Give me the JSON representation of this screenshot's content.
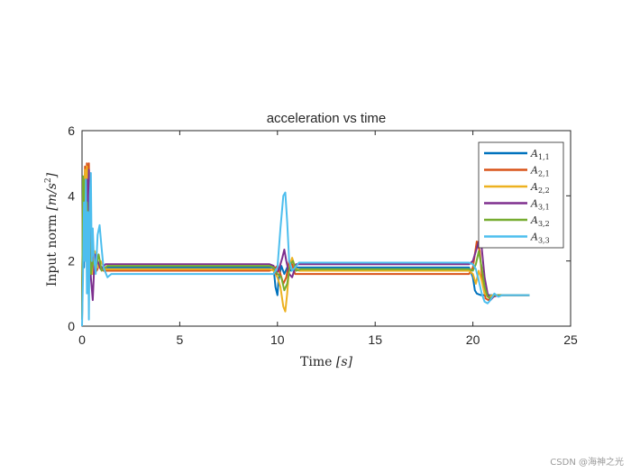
{
  "chart_data": {
    "type": "line",
    "title": "acceleration vs time",
    "xlabel": "Time [s]",
    "ylabel": "Input norm [m/s^2]",
    "xlim": [
      0,
      25
    ],
    "ylim": [
      0,
      6
    ],
    "xticks": [
      0,
      5,
      10,
      15,
      20,
      25
    ],
    "yticks": [
      0,
      2,
      4,
      6
    ],
    "legend_position": "top-right",
    "series": [
      {
        "name": "A1,1",
        "base": "A",
        "sub": "1,1",
        "color": "#0072BD",
        "points": [
          [
            0,
            0.2
          ],
          [
            0.05,
            3.5
          ],
          [
            0.1,
            1.8
          ],
          [
            0.15,
            3.8
          ],
          [
            0.2,
            2.5
          ],
          [
            0.25,
            4.2
          ],
          [
            0.3,
            1.7
          ],
          [
            0.35,
            3.0
          ],
          [
            0.4,
            2.2
          ],
          [
            0.45,
            1.7
          ],
          [
            0.55,
            2.1
          ],
          [
            0.65,
            1.8
          ],
          [
            0.8,
            1.9
          ],
          [
            1.0,
            1.75
          ],
          [
            1.3,
            1.8
          ],
          [
            2,
            1.8
          ],
          [
            9.6,
            1.8
          ],
          [
            9.8,
            1.8
          ],
          [
            9.9,
            1.2
          ],
          [
            10.0,
            0.95
          ],
          [
            10.05,
            1.4
          ],
          [
            10.2,
            1.85
          ],
          [
            10.35,
            1.6
          ],
          [
            10.5,
            1.8
          ],
          [
            10.7,
            1.7
          ],
          [
            11,
            1.8
          ],
          [
            19.8,
            1.8
          ],
          [
            20.0,
            1.5
          ],
          [
            20.1,
            1.1
          ],
          [
            20.2,
            1.0
          ],
          [
            20.4,
            0.95
          ],
          [
            20.8,
            0.95
          ],
          [
            21,
            0.95
          ],
          [
            22,
            0.95
          ],
          [
            22.9,
            0.95
          ]
        ]
      },
      {
        "name": "A2,1",
        "base": "A",
        "sub": "2,1",
        "color": "#D95319",
        "points": [
          [
            0,
            0.3
          ],
          [
            0.05,
            4.5
          ],
          [
            0.1,
            3.0
          ],
          [
            0.15,
            4.9
          ],
          [
            0.2,
            3.5
          ],
          [
            0.25,
            5.0
          ],
          [
            0.3,
            4.0
          ],
          [
            0.35,
            5.0
          ],
          [
            0.4,
            3.0
          ],
          [
            0.45,
            2.0
          ],
          [
            0.5,
            1.6
          ],
          [
            0.6,
            2.2
          ],
          [
            0.75,
            1.7
          ],
          [
            0.9,
            1.9
          ],
          [
            1.1,
            1.7
          ],
          [
            1.5,
            1.7
          ],
          [
            2,
            1.7
          ],
          [
            9.6,
            1.7
          ],
          [
            9.8,
            1.75
          ],
          [
            10.0,
            1.85
          ],
          [
            10.15,
            1.6
          ],
          [
            10.3,
            1.3
          ],
          [
            10.45,
            1.5
          ],
          [
            10.6,
            2.0
          ],
          [
            10.75,
            1.9
          ],
          [
            10.9,
            1.6
          ],
          [
            11.2,
            1.6
          ],
          [
            11.5,
            1.6
          ],
          [
            19.8,
            1.6
          ],
          [
            20.0,
            1.8
          ],
          [
            20.2,
            2.6
          ],
          [
            20.35,
            2.3
          ],
          [
            20.5,
            1.3
          ],
          [
            20.65,
            0.85
          ],
          [
            20.8,
            0.8
          ],
          [
            21.0,
            0.9
          ],
          [
            21.3,
            0.95
          ],
          [
            22,
            0.95
          ],
          [
            22.9,
            0.95
          ]
        ]
      },
      {
        "name": "A2,2",
        "base": "A",
        "sub": "2,2",
        "color": "#EDB120",
        "points": [
          [
            0,
            0.3
          ],
          [
            0.05,
            4.0
          ],
          [
            0.1,
            2.5
          ],
          [
            0.15,
            4.8
          ],
          [
            0.2,
            3.2
          ],
          [
            0.25,
            4.9
          ],
          [
            0.3,
            3.5
          ],
          [
            0.35,
            4.8
          ],
          [
            0.4,
            2.5
          ],
          [
            0.45,
            1.8
          ],
          [
            0.55,
            1.6
          ],
          [
            0.65,
            2.3
          ],
          [
            0.8,
            1.8
          ],
          [
            0.95,
            2.0
          ],
          [
            1.2,
            1.75
          ],
          [
            2,
            1.75
          ],
          [
            9.6,
            1.75
          ],
          [
            9.8,
            1.7
          ],
          [
            10.0,
            1.5
          ],
          [
            10.15,
            1.2
          ],
          [
            10.3,
            0.6
          ],
          [
            10.4,
            0.45
          ],
          [
            10.5,
            1.0
          ],
          [
            10.6,
            1.8
          ],
          [
            10.75,
            2.1
          ],
          [
            10.9,
            1.8
          ],
          [
            11.1,
            1.7
          ],
          [
            11.5,
            1.7
          ],
          [
            19.8,
            1.7
          ],
          [
            20.0,
            1.6
          ],
          [
            20.15,
            1.3
          ],
          [
            20.3,
            1.7
          ],
          [
            20.45,
            1.4
          ],
          [
            20.6,
            1.0
          ],
          [
            20.8,
            0.9
          ],
          [
            21,
            0.95
          ],
          [
            22,
            0.95
          ],
          [
            22.9,
            0.95
          ]
        ]
      },
      {
        "name": "A3,1",
        "base": "A",
        "sub": "3,1",
        "color": "#7E2F8E",
        "points": [
          [
            0,
            0.3
          ],
          [
            0.05,
            4.2
          ],
          [
            0.1,
            3.5
          ],
          [
            0.15,
            4.0
          ],
          [
            0.2,
            2.5
          ],
          [
            0.25,
            4.5
          ],
          [
            0.3,
            3.0
          ],
          [
            0.35,
            4.8
          ],
          [
            0.4,
            2.5
          ],
          [
            0.45,
            1.5
          ],
          [
            0.55,
            0.8
          ],
          [
            0.65,
            2.2
          ],
          [
            0.8,
            2.0
          ],
          [
            0.95,
            1.75
          ],
          [
            1.2,
            1.9
          ],
          [
            1.6,
            1.9
          ],
          [
            2,
            1.9
          ],
          [
            9.6,
            1.9
          ],
          [
            9.8,
            1.85
          ],
          [
            9.95,
            1.6
          ],
          [
            10.1,
            1.8
          ],
          [
            10.25,
            2.1
          ],
          [
            10.35,
            2.35
          ],
          [
            10.45,
            2.0
          ],
          [
            10.6,
            1.6
          ],
          [
            10.75,
            1.5
          ],
          [
            10.95,
            1.9
          ],
          [
            11.1,
            1.9
          ],
          [
            11.5,
            1.9
          ],
          [
            19.8,
            1.9
          ],
          [
            20.0,
            2.0
          ],
          [
            20.15,
            2.3
          ],
          [
            20.3,
            2.6
          ],
          [
            20.45,
            2.4
          ],
          [
            20.6,
            1.5
          ],
          [
            20.75,
            1.0
          ],
          [
            20.9,
            0.8
          ],
          [
            21.05,
            0.9
          ],
          [
            21.3,
            0.95
          ],
          [
            22,
            0.95
          ],
          [
            22.9,
            0.95
          ]
        ]
      },
      {
        "name": "A3,2",
        "base": "A",
        "sub": "3,2",
        "color": "#77AC30",
        "points": [
          [
            0,
            0.2
          ],
          [
            0.05,
            4.6
          ],
          [
            0.1,
            3.2
          ],
          [
            0.15,
            4.5
          ],
          [
            0.2,
            3.0
          ],
          [
            0.25,
            3.8
          ],
          [
            0.3,
            2.8
          ],
          [
            0.35,
            3.5
          ],
          [
            0.4,
            2.2
          ],
          [
            0.45,
            1.6
          ],
          [
            0.55,
            2.0
          ],
          [
            0.7,
            1.8
          ],
          [
            0.85,
            2.2
          ],
          [
            1.0,
            1.7
          ],
          [
            1.3,
            1.85
          ],
          [
            2,
            1.85
          ],
          [
            9.6,
            1.85
          ],
          [
            9.8,
            1.8
          ],
          [
            10.0,
            1.6
          ],
          [
            10.2,
            1.5
          ],
          [
            10.35,
            1.1
          ],
          [
            10.5,
            1.3
          ],
          [
            10.65,
            1.9
          ],
          [
            10.8,
            2.0
          ],
          [
            10.95,
            1.7
          ],
          [
            11.2,
            1.75
          ],
          [
            11.5,
            1.75
          ],
          [
            19.8,
            1.75
          ],
          [
            20.0,
            1.7
          ],
          [
            20.15,
            1.9
          ],
          [
            20.3,
            2.3
          ],
          [
            20.45,
            1.8
          ],
          [
            20.6,
            1.2
          ],
          [
            20.75,
            0.9
          ],
          [
            20.9,
            0.85
          ],
          [
            21.1,
            0.95
          ],
          [
            22,
            0.95
          ],
          [
            22.9,
            0.95
          ]
        ]
      },
      {
        "name": "A3,3",
        "base": "A",
        "sub": "3,3",
        "color": "#4DBEEE",
        "points": [
          [
            0,
            0.0
          ],
          [
            0.05,
            1.5
          ],
          [
            0.1,
            3.8
          ],
          [
            0.15,
            2.0
          ],
          [
            0.2,
            4.5
          ],
          [
            0.25,
            1.0
          ],
          [
            0.3,
            3.5
          ],
          [
            0.35,
            0.2
          ],
          [
            0.4,
            4.0
          ],
          [
            0.45,
            4.7
          ],
          [
            0.5,
            2.0
          ],
          [
            0.55,
            3.0
          ],
          [
            0.6,
            2.2
          ],
          [
            0.7,
            1.6
          ],
          [
            0.8,
            2.8
          ],
          [
            0.9,
            3.1
          ],
          [
            1.0,
            2.4
          ],
          [
            1.1,
            1.8
          ],
          [
            1.3,
            1.5
          ],
          [
            1.5,
            1.6
          ],
          [
            2,
            1.6
          ],
          [
            9.6,
            1.6
          ],
          [
            9.8,
            1.6
          ],
          [
            10.0,
            1.8
          ],
          [
            10.15,
            3.0
          ],
          [
            10.3,
            4.0
          ],
          [
            10.4,
            4.1
          ],
          [
            10.5,
            3.2
          ],
          [
            10.6,
            2.0
          ],
          [
            10.75,
            1.7
          ],
          [
            10.9,
            1.8
          ],
          [
            11.1,
            1.95
          ],
          [
            11.5,
            1.95
          ],
          [
            19.8,
            1.95
          ],
          [
            20.0,
            1.9
          ],
          [
            20.15,
            1.75
          ],
          [
            20.3,
            1.4
          ],
          [
            20.45,
            1.0
          ],
          [
            20.6,
            0.75
          ],
          [
            20.75,
            0.7
          ],
          [
            20.9,
            0.8
          ],
          [
            21.1,
            1.0
          ],
          [
            21.3,
            0.9
          ],
          [
            21.5,
            0.95
          ],
          [
            22,
            0.95
          ],
          [
            22.9,
            0.95
          ]
        ]
      }
    ]
  },
  "watermark": "CSDN @海神之光"
}
